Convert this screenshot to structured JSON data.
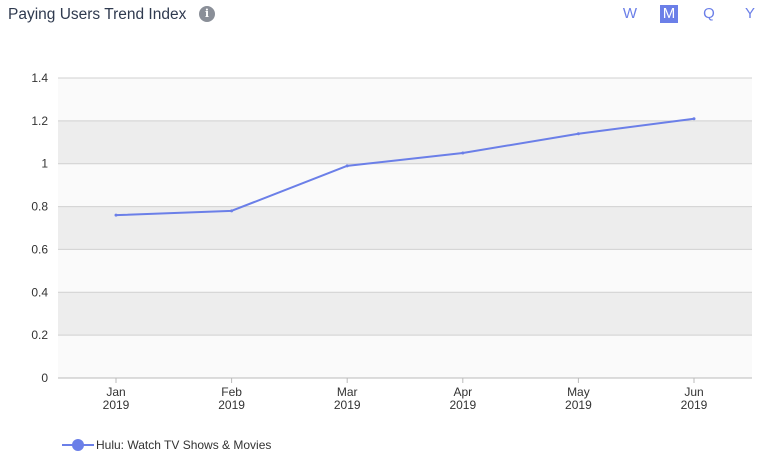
{
  "header": {
    "title": "Paying Users Trend Index",
    "info_icon": "info-icon",
    "periods": [
      "W",
      "M",
      "Q",
      "Y"
    ],
    "active_period": "M"
  },
  "colors": {
    "series": "#6b7fe8",
    "band_light": "#fafafa",
    "band_dark": "#ededed",
    "grid": "#d0d0d0"
  },
  "chart_data": {
    "type": "line",
    "title": "Paying Users Trend Index",
    "xlabel": "",
    "ylabel": "",
    "categories": [
      "Jan 2019",
      "Feb 2019",
      "Mar 2019",
      "Apr 2019",
      "May 2019",
      "Jun 2019"
    ],
    "x_tick_labels": [
      [
        "Jan",
        "2019"
      ],
      [
        "Feb",
        "2019"
      ],
      [
        "Mar",
        "2019"
      ],
      [
        "Apr",
        "2019"
      ],
      [
        "May",
        "2019"
      ],
      [
        "Jun",
        "2019"
      ]
    ],
    "y_ticks": [
      "0",
      "0.2",
      "0.4",
      "0.6",
      "0.8",
      "1",
      "1.2",
      "1.4"
    ],
    "ylim": [
      0,
      1.4
    ],
    "grid": true,
    "legend_position": "bottom-left",
    "series": [
      {
        "name": "Hulu: Watch TV Shows & Movies",
        "values": [
          0.76,
          0.78,
          0.99,
          1.05,
          1.14,
          1.21
        ]
      }
    ]
  }
}
